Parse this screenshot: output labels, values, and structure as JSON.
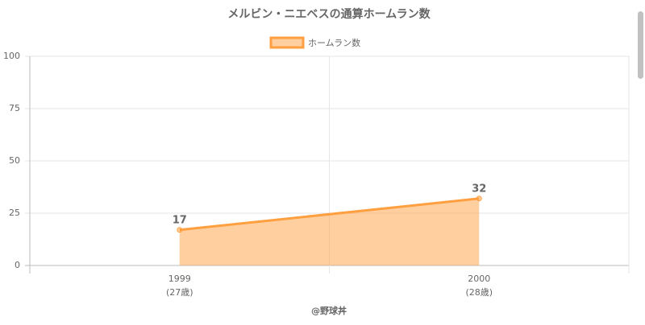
{
  "chart_data": {
    "type": "line",
    "title": "メルビン・ニエベスの通算ホームラン数",
    "categories": [
      "1999",
      "2000"
    ],
    "category_sublabels": [
      "(27歳)",
      "(28歳)"
    ],
    "x_label": "@野球丼",
    "series": [
      {
        "name": "ホームラン数",
        "color": "#ff9f40",
        "fill": "rgba(255,159,64,0.5)",
        "values": [
          17,
          32
        ]
      }
    ],
    "ylim": [
      0,
      100
    ],
    "yticks": [
      0,
      25,
      50,
      75,
      100
    ],
    "grid": true
  }
}
